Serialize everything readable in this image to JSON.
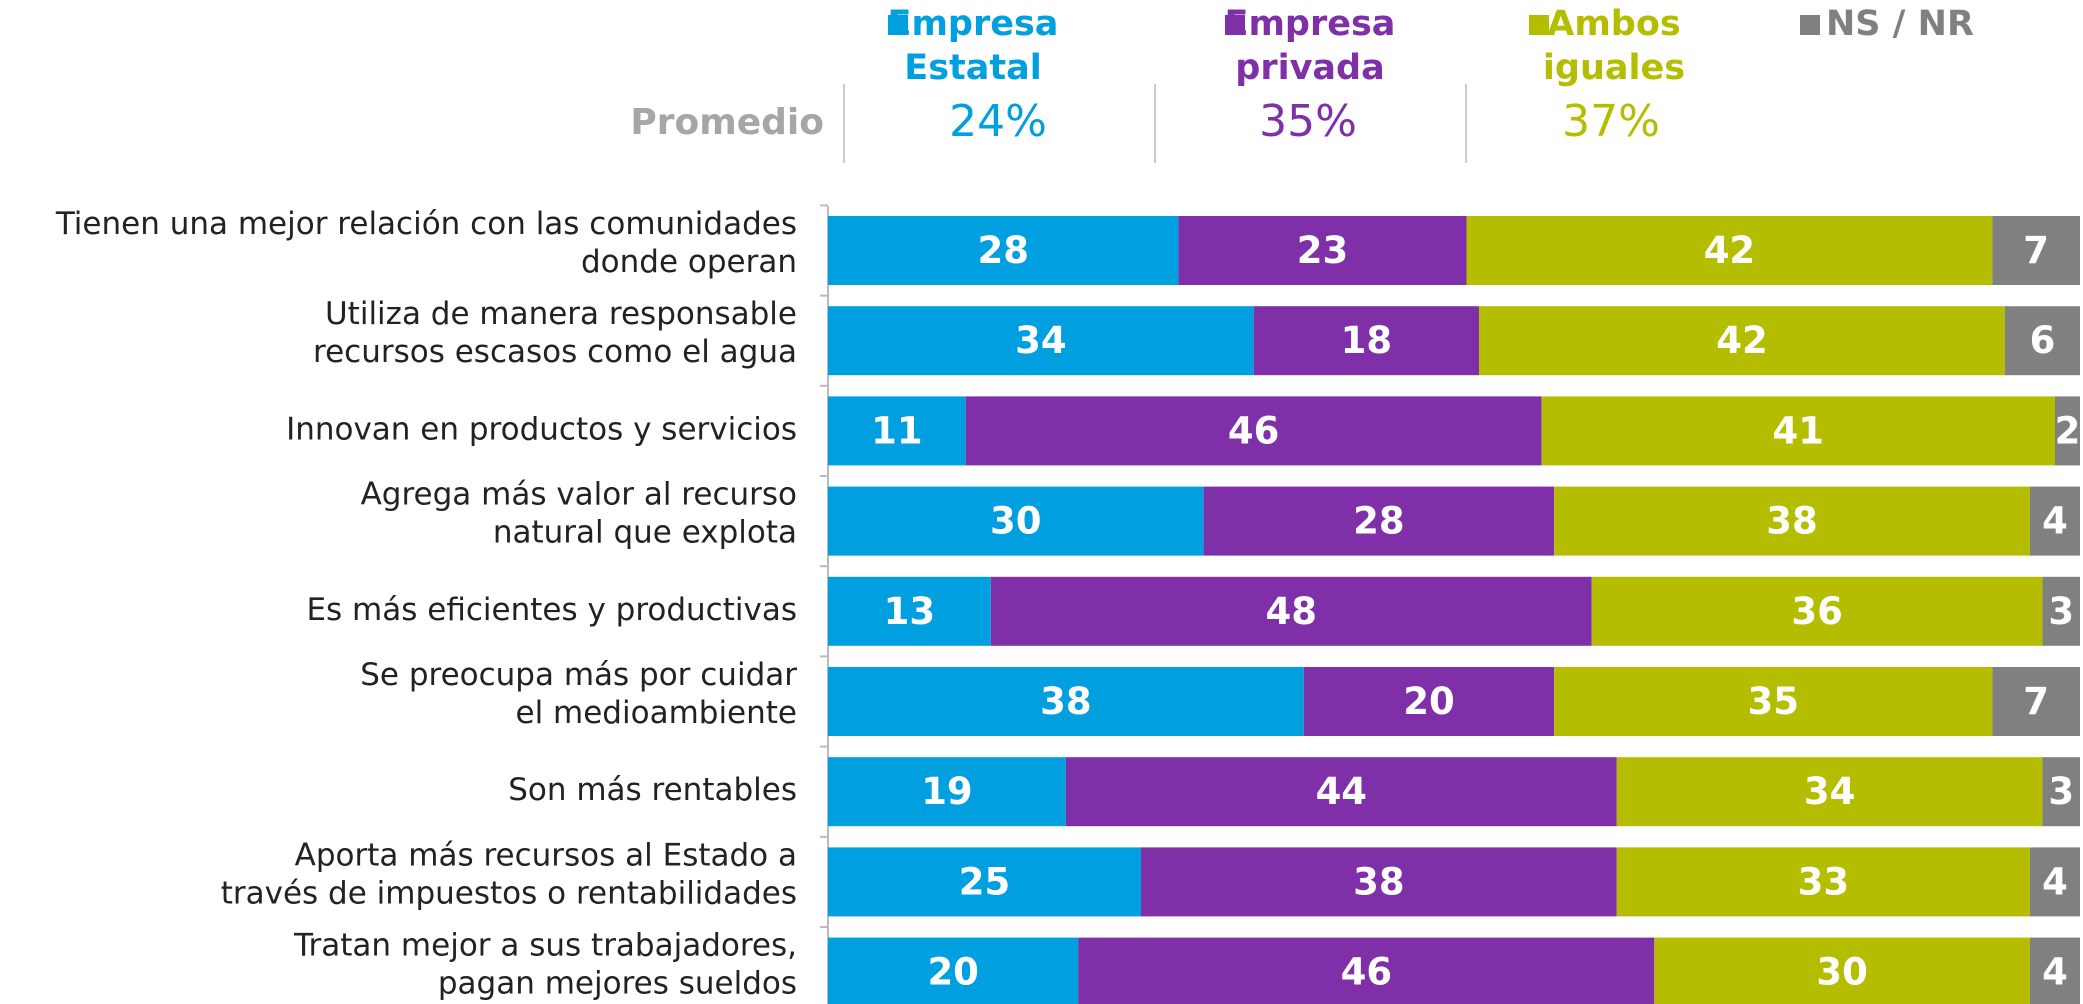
{
  "chart_data": {
    "type": "stacked_bar_horizontal",
    "categories": [
      [
        "Tienen una mejor relación con las comunidades",
        "donde operan"
      ],
      [
        "Utiliza de manera responsable",
        "recursos escasos como el agua"
      ],
      [
        "Innovan en productos y servicios"
      ],
      [
        "Agrega más valor al recurso",
        "natural que explota"
      ],
      [
        "Es más eficientes y productivas"
      ],
      [
        "Se preocupa más por cuidar",
        "el medioambiente"
      ],
      [
        "Son más rentables"
      ],
      [
        "Aporta más recursos al Estado a",
        "través de impuestos o rentabilidades"
      ],
      [
        "Tratan mejor a sus trabajadores,",
        "pagan mejores sueldos"
      ]
    ],
    "series": [
      {
        "name": "Empresa Estatal",
        "color": "#00a0e0",
        "values": [
          28,
          34,
          11,
          30,
          13,
          38,
          19,
          25,
          20
        ]
      },
      {
        "name": "Empresa privada",
        "color": "#7f2fa8",
        "values": [
          23,
          18,
          46,
          28,
          48,
          20,
          44,
          38,
          46
        ]
      },
      {
        "name": "Ambos iguales",
        "color": "#b5bd00",
        "values": [
          42,
          42,
          41,
          38,
          36,
          35,
          34,
          33,
          30
        ]
      },
      {
        "name": "NS / NR",
        "color": "#808080",
        "values": [
          7,
          6,
          2,
          4,
          3,
          7,
          3,
          4,
          4
        ]
      }
    ],
    "xlim": [
      0,
      100
    ],
    "average": {
      "label": "Promedio",
      "values": [
        24,
        35,
        37
      ],
      "value_labels": [
        "24%",
        "35%",
        "37%"
      ]
    }
  }
}
